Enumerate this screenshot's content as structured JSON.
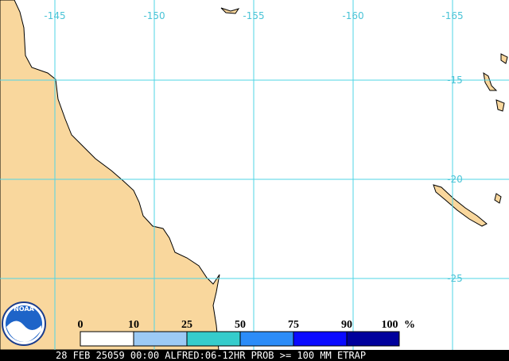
{
  "map": {
    "longitude_labels": [
      "-145",
      "-150",
      "-155",
      "-160",
      "-165"
    ],
    "latitude_labels": [
      "-15",
      "-20",
      "-25"
    ],
    "logo": "NOAA",
    "legend": {
      "labels": [
        "0",
        "10",
        "25",
        "50",
        "75",
        "90",
        "100"
      ],
      "unit": "%"
    },
    "caption": "28 FEB 25059 00:00 ALFRED:06-12HR PROB >= 100 MM ETRAP"
  }
}
